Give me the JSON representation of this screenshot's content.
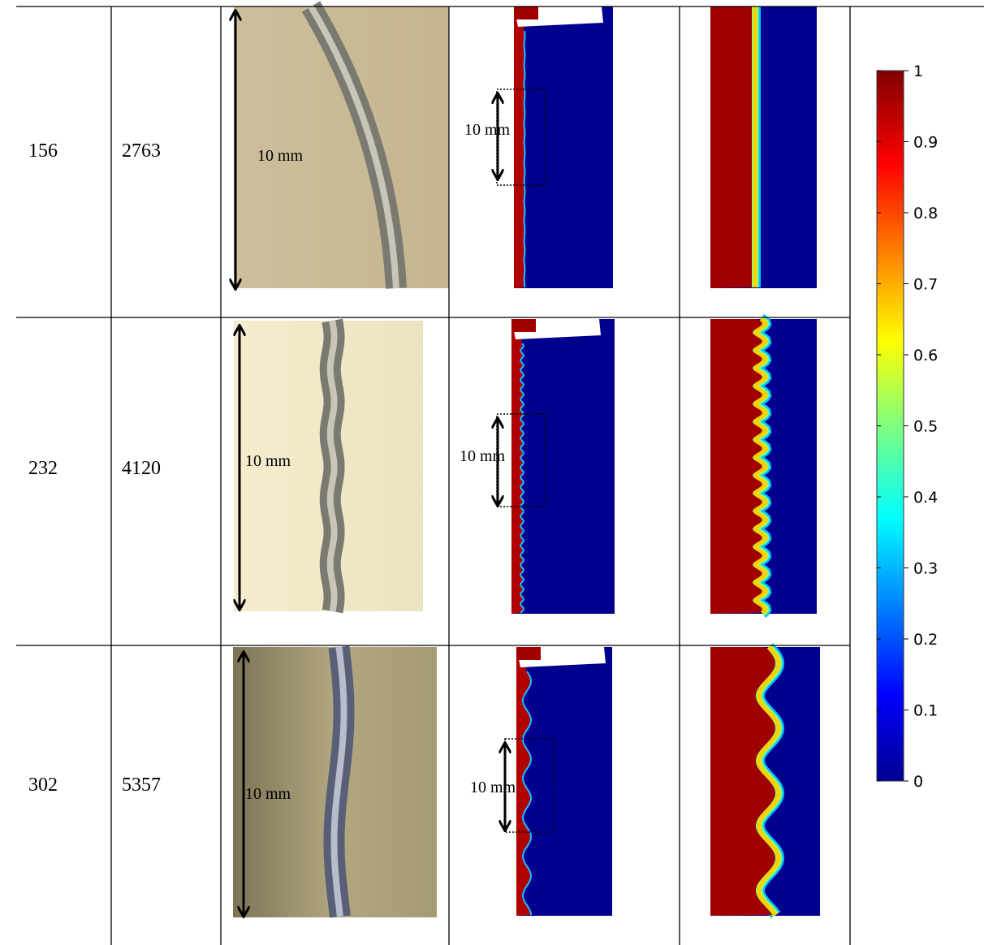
{
  "table": {
    "rows": [
      {
        "cells": [
          "156",
          "2763"
        ],
        "photo_scale": "10 mm",
        "sim_scale": "10 mm"
      },
      {
        "cells": [
          "232",
          "4120"
        ],
        "photo_scale": "10 mm",
        "sim_scale": "10 mm"
      },
      {
        "cells": [
          "302",
          "5357"
        ],
        "photo_scale": "10 mm",
        "sim_scale": "10 mm"
      }
    ]
  },
  "colorbar": {
    "ticks": [
      0,
      0.1,
      0.2,
      0.3,
      0.4,
      0.5,
      0.6,
      0.7,
      0.8,
      0.9,
      1
    ]
  }
}
